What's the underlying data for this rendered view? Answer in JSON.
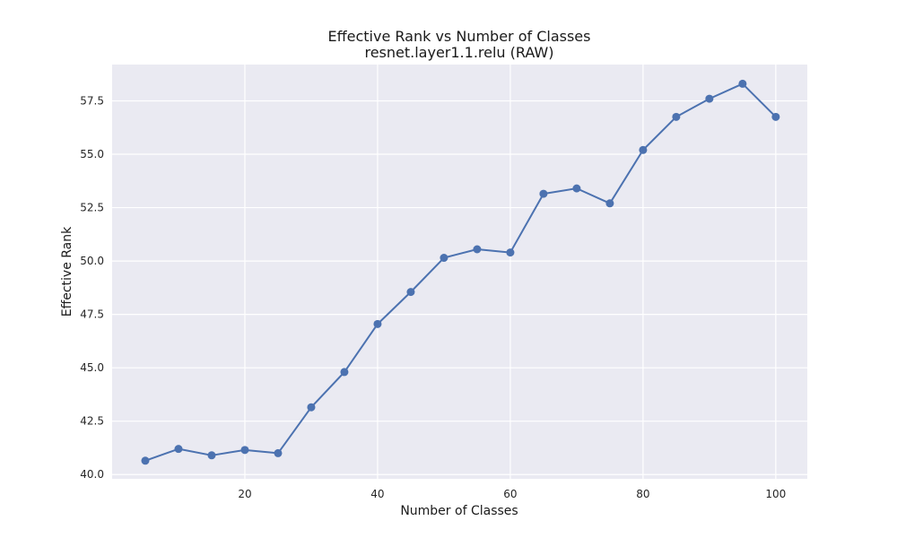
{
  "chart_data": {
    "type": "line",
    "title": "Effective Rank vs Number of Classes",
    "subtitle": "resnet.layer1.1.relu (RAW)",
    "xlabel": "Number of Classes",
    "ylabel": "Effective Rank",
    "xlim": [
      0,
      104.75
    ],
    "ylim": [
      39.8,
      59.2
    ],
    "xticks": [
      20,
      40,
      60,
      80,
      100
    ],
    "xtick_labels": [
      "20",
      "40",
      "60",
      "80",
      "100"
    ],
    "yticks": [
      40.0,
      42.5,
      45.0,
      47.5,
      50.0,
      52.5,
      55.0,
      57.5
    ],
    "ytick_labels": [
      "40.0",
      "42.5",
      "45.0",
      "47.5",
      "50.0",
      "52.5",
      "55.0",
      "57.5"
    ],
    "grid": true,
    "colors": {
      "background": "#eaeaf2",
      "grid": "#ffffff",
      "series": "#4c72b0"
    },
    "series": [
      {
        "name": "",
        "x": [
          5,
          10,
          15,
          20,
          25,
          30,
          35,
          40,
          45,
          50,
          55,
          60,
          65,
          70,
          75,
          80,
          85,
          90,
          95,
          100
        ],
        "y": [
          40.65,
          41.2,
          40.9,
          41.15,
          41.0,
          43.15,
          44.8,
          47.05,
          48.55,
          50.15,
          50.55,
          50.4,
          53.15,
          53.4,
          52.7,
          55.2,
          56.75,
          57.6,
          58.3,
          56.75
        ]
      }
    ]
  }
}
